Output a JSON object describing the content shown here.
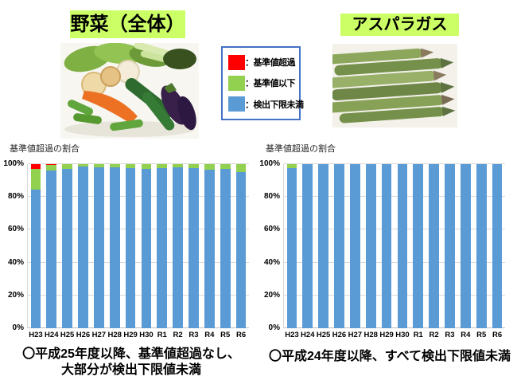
{
  "page": {
    "highlight_color": "#CCFF66",
    "legend_border_color": "#4472C4"
  },
  "left_panel": {
    "title": "野菜（全体）",
    "note_line1": "〇平成25年度以降、基準値超過なし、",
    "note_line2": "大部分が検出下限値未満"
  },
  "right_panel": {
    "title": "アスパラガス",
    "note": "〇平成24年度以降、すべて検出下限値未満"
  },
  "legend": {
    "items": [
      {
        "label": "：基準値超過",
        "color": "#FF0000"
      },
      {
        "label": "：基準値以下",
        "color": "#92D050"
      },
      {
        "label": "：検出下限未満",
        "color": "#5B9BD5"
      }
    ]
  },
  "chart_data": [
    {
      "type": "bar",
      "stacked": true,
      "title": "野菜（全体）",
      "ylabel": "基準値超過の割合",
      "xlabel": "",
      "categories": [
        "H23",
        "H24",
        "H25",
        "H26",
        "H27",
        "H28",
        "H29",
        "H30",
        "R1",
        "R2",
        "R3",
        "R4",
        "R5",
        "R6"
      ],
      "series": [
        {
          "name": "検出下限未満",
          "color": "#5B9BD5",
          "values": [
            84.5,
            96,
            97,
            98.5,
            98,
            98,
            97.5,
            97,
            97.5,
            98,
            97.5,
            96.5,
            97,
            95
          ]
        },
        {
          "name": "基準値以下",
          "color": "#92D050",
          "values": [
            12.5,
            3.5,
            3,
            1.5,
            2,
            2,
            2.5,
            3,
            2.5,
            2,
            2.5,
            3.5,
            3,
            5
          ]
        },
        {
          "name": "基準値超過",
          "color": "#FF0000",
          "values": [
            3,
            0.5,
            0,
            0,
            0,
            0,
            0,
            0,
            0,
            0,
            0,
            0,
            0,
            0
          ]
        }
      ],
      "ylim": [
        0,
        100
      ],
      "ytick_labels": [
        "0%",
        "20%",
        "40%",
        "60%",
        "80%",
        "100%"
      ],
      "grid": true,
      "legend_position": "top-center-shared"
    },
    {
      "type": "bar",
      "stacked": true,
      "title": "アスパラガス",
      "ylabel": "基準値超過の割合",
      "xlabel": "",
      "categories": [
        "H23",
        "H24",
        "H25",
        "H26",
        "H27",
        "H28",
        "H29",
        "H30",
        "R1",
        "R2",
        "R3",
        "R4",
        "R5",
        "R6"
      ],
      "series": [
        {
          "name": "検出下限未満",
          "color": "#5B9BD5",
          "values": [
            97.5,
            100,
            100,
            100,
            100,
            100,
            100,
            100,
            100,
            100,
            100,
            100,
            100,
            100
          ]
        },
        {
          "name": "基準値以下",
          "color": "#92D050",
          "values": [
            2.5,
            0,
            0,
            0,
            0,
            0,
            0,
            0,
            0,
            0,
            0,
            0,
            0,
            0
          ]
        },
        {
          "name": "基準値超過",
          "color": "#FF0000",
          "values": [
            0,
            0,
            0,
            0,
            0,
            0,
            0,
            0,
            0,
            0,
            0,
            0,
            0,
            0
          ]
        }
      ],
      "ylim": [
        0,
        100
      ],
      "ytick_labels": [
        "0%",
        "20%",
        "40%",
        "60%",
        "80%",
        "100%"
      ],
      "grid": true,
      "legend_position": "top-center-shared"
    }
  ]
}
